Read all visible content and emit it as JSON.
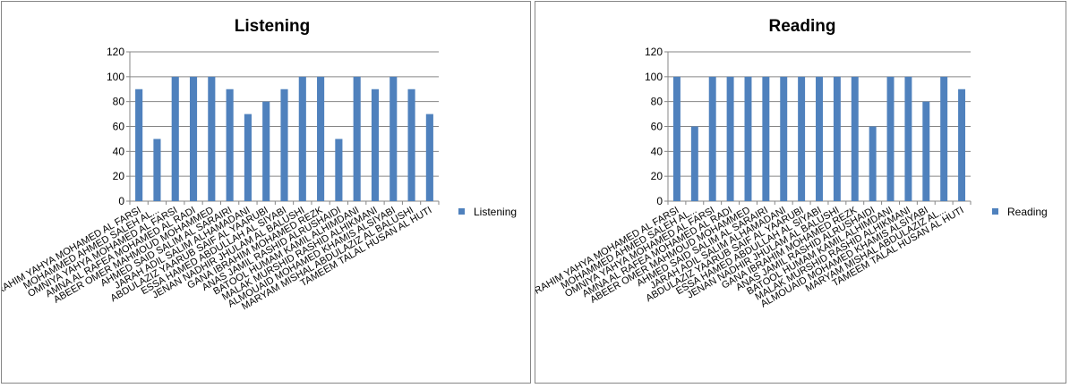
{
  "chart_data": [
    {
      "type": "bar",
      "title": "Listening",
      "xlabel": "",
      "ylabel": "",
      "ylim": [
        0,
        120
      ],
      "yticks": [
        0,
        20,
        40,
        60,
        80,
        100,
        120
      ],
      "grid": true,
      "legend_position": "right",
      "color": "#4F81BD",
      "categories": [
        "EBRAHIM YAHYA MOHAMED AL FARSI",
        "MOHAMMED AHMED SALEH AL...",
        "OMNIYA YAHYA MOHAMED AL FARSI",
        "AMNA AL RAFEA MOHAMED AL RADI",
        "ABEER OMER MAHMOUD MOHAMMED",
        "AHMED SAID SALIM AL SARAIRI",
        "JARAH ADIL SALIM ALHAMADANI",
        "ABDULAZIZ YAARUB SAIF AL YAARUBI",
        "ESSA HAMED ABDULLAH AL SIYABI",
        "JENAN NADHIR JHULAM AL BALUSHI",
        "GANA IBRAHIM MOHAMED REZK",
        "ANAS    JAMIL RASHID ALRUSHAIDI",
        "BATOOL    HUMAM KAMIL ALHIMDANI",
        "MALAK    MURSHID RASHID ALHIKMANI",
        "ALMOUAID    MOHAMED KHAMIS ALSIYABI",
        "MARYAM    MISHAL ABDULAZIZ AL BALUSHI",
        "TAMEEM    TALAL HUSAN AL HUTI"
      ],
      "series": [
        {
          "name": "Listening",
          "values": [
            90,
            50,
            100,
            100,
            100,
            90,
            70,
            80,
            90,
            100,
            100,
            50,
            100,
            90,
            100,
            90,
            70
          ]
        }
      ]
    },
    {
      "type": "bar",
      "title": "Reading",
      "xlabel": "",
      "ylabel": "",
      "ylim": [
        0,
        120
      ],
      "yticks": [
        0,
        20,
        40,
        60,
        80,
        100,
        120
      ],
      "grid": true,
      "legend_position": "right",
      "color": "#4F81BD",
      "categories": [
        "EBRAHIM YAHYA MOHAMED AL FARSI",
        "MOHAMMED AHMED SALEH AL...",
        "OMNIYA YAHYA MOHAMED AL FARSI",
        "AMNA AL RAFEA MOHAMED AL RADI",
        "ABEER OMER MAHMOUD MOHAMMED",
        "AHMED SAID SALIM AL SARAIRI",
        "JARAH ADIL SALIM ALHAMADANI",
        "ABDULAZIZ YAARUB SAIF AL YAARUBI",
        "ESSA HAMED ABDULLAH AL SIYABI",
        "JENAN NADHIR JHULAM AL BALUSHI",
        "GANA IBRAHIM MOHAMED REZK",
        "ANAS    JAMIL RASHID ALRUSHAIDI",
        "BATOOL    HUMAM KAMIL ALHIMDANI",
        "MALAK    MURSHID RASHID ALHIKMANI",
        "ALMOUAID    MOHAMED KHAMIS ALSIYABI",
        "MARYAM    MISHAL ABDULAZIZ AL...",
        "TAMEEM    TALAL HUSAN AL HUTI"
      ],
      "series": [
        {
          "name": "Reading",
          "values": [
            100,
            60,
            100,
            100,
            100,
            100,
            100,
            100,
            100,
            100,
            100,
            60,
            100,
            100,
            80,
            100,
            90
          ]
        }
      ]
    }
  ]
}
